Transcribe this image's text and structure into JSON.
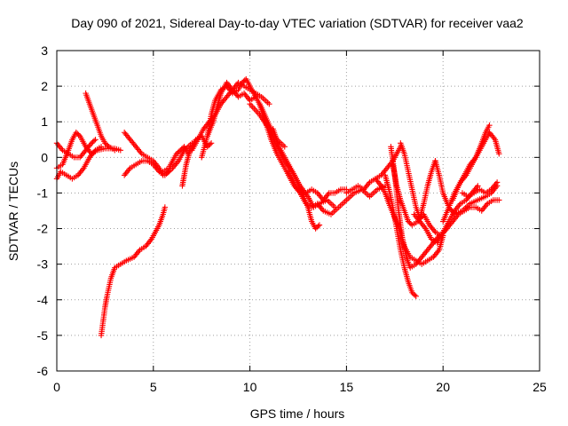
{
  "chart_data": {
    "type": "scatter",
    "title": "Day 090 of 2021, Sidereal Day-to-day VTEC variation (SDTVAR) for receiver vaa2",
    "xlabel": "GPS time / hours",
    "ylabel": "SDTVAR / TECUs",
    "xlim": [
      0,
      25
    ],
    "ylim": [
      -6,
      3
    ],
    "xticks": [
      0,
      5,
      10,
      15,
      20,
      25
    ],
    "yticks": [
      -6,
      -5,
      -4,
      -3,
      -2,
      -1,
      0,
      1,
      2,
      3
    ],
    "grid": true,
    "legend": "none",
    "marker": "plus",
    "color": "#ff0000",
    "series": [
      {
        "x": [
          0.0,
          0.3,
          0.6,
          0.8,
          1.0,
          1.2,
          1.5,
          1.8,
          2.1,
          2.5,
          3.0,
          3.3
        ],
        "y": [
          -0.3,
          -0.2,
          0.2,
          0.5,
          0.7,
          0.6,
          0.3,
          0.1,
          0.2,
          0.25,
          0.25,
          0.2
        ]
      },
      {
        "x": [
          0.0,
          0.2,
          0.5,
          0.8,
          1.1,
          1.4,
          1.7,
          2.0,
          2.3
        ],
        "y": [
          -0.6,
          -0.4,
          -0.5,
          -0.6,
          -0.5,
          -0.3,
          0.0,
          0.2,
          0.3
        ]
      },
      {
        "x": [
          0.0,
          0.3,
          0.6,
          0.9,
          1.2,
          1.5,
          1.8,
          2.0
        ],
        "y": [
          0.4,
          0.2,
          0.1,
          0.0,
          0.0,
          0.2,
          0.4,
          0.5
        ]
      },
      {
        "x": [
          1.5,
          1.7,
          1.9,
          2.1,
          2.3,
          2.5,
          2.7,
          3.0
        ],
        "y": [
          1.8,
          1.5,
          1.2,
          0.9,
          0.6,
          0.4,
          0.3,
          0.2
        ]
      },
      {
        "x": [
          2.3,
          2.4,
          2.5,
          2.6,
          2.8,
          3.0,
          3.3,
          3.6,
          4.0,
          4.3,
          4.6,
          4.9,
          5.1,
          5.3,
          5.5,
          5.6
        ],
        "y": [
          -5.0,
          -4.6,
          -4.2,
          -3.9,
          -3.4,
          -3.1,
          -3.0,
          -2.9,
          -2.8,
          -2.6,
          -2.5,
          -2.3,
          -2.1,
          -1.9,
          -1.6,
          -1.4
        ]
      },
      {
        "x": [
          3.5,
          3.8,
          4.1,
          4.4,
          4.7,
          5.0,
          5.3,
          5.5,
          5.8
        ],
        "y": [
          0.7,
          0.5,
          0.3,
          0.1,
          0.0,
          -0.1,
          -0.3,
          -0.5,
          -0.4
        ]
      },
      {
        "x": [
          3.5,
          3.8,
          4.1,
          4.4,
          4.7,
          5.0,
          5.3,
          5.6,
          6.0,
          6.3,
          6.6,
          7.0
        ],
        "y": [
          -0.5,
          -0.3,
          -0.2,
          -0.1,
          -0.1,
          -0.2,
          -0.4,
          -0.5,
          -0.3,
          -0.1,
          0.2,
          0.4
        ]
      },
      {
        "x": [
          5.5,
          5.8,
          6.0,
          6.2,
          6.4,
          6.6,
          6.8,
          7.0,
          7.2,
          7.5,
          7.8,
          8.0
        ],
        "y": [
          -0.4,
          -0.3,
          -0.1,
          0.1,
          0.2,
          0.3,
          0.1,
          0.3,
          0.5,
          0.6,
          0.3,
          0.4
        ]
      },
      {
        "x": [
          6.5,
          6.6,
          6.7,
          6.8,
          6.9
        ],
        "y": [
          -0.8,
          -0.5,
          -0.2,
          0.0,
          0.2
        ]
      },
      {
        "x": [
          7.0,
          7.3,
          7.6,
          7.9,
          8.2,
          8.5,
          8.8,
          9.1,
          9.4,
          9.7,
          10.0,
          10.3,
          10.6,
          11.0
        ],
        "y": [
          0.2,
          0.5,
          0.8,
          1.0,
          1.2,
          1.5,
          1.7,
          1.9,
          2.1,
          2.0,
          1.9,
          1.8,
          1.7,
          1.5
        ]
      },
      {
        "x": [
          7.5,
          7.8,
          8.1,
          8.3,
          8.5,
          8.8,
          9.1,
          9.4,
          9.7,
          10.0,
          10.3
        ],
        "y": [
          0.0,
          0.6,
          1.0,
          1.4,
          1.8,
          2.1,
          1.9,
          1.7,
          1.8,
          1.6,
          1.7
        ]
      },
      {
        "x": [
          7.8,
          8.0,
          8.2,
          8.5,
          8.8,
          9.1,
          9.4,
          9.6,
          9.8,
          10.2,
          10.6,
          11.0,
          11.4,
          11.8
        ],
        "y": [
          0.6,
          1.2,
          1.6,
          1.9,
          2.0,
          1.8,
          1.9,
          2.1,
          2.2,
          1.8,
          1.4,
          0.9,
          0.5,
          0.3
        ]
      },
      {
        "x": [
          10.5,
          10.8,
          11.1,
          11.4,
          11.7,
          12.0,
          12.3,
          12.6,
          12.9,
          13.2,
          13.5,
          13.8,
          14.1,
          14.4,
          14.7,
          15.0
        ],
        "y": [
          1.5,
          1.0,
          0.5,
          0.1,
          -0.2,
          -0.5,
          -0.8,
          -1.0,
          -1.0,
          -0.9,
          -1.0,
          -1.2,
          -1.0,
          -1.0,
          -0.9,
          -0.9
        ]
      },
      {
        "x": [
          10.0,
          10.5,
          11.0,
          11.4,
          11.8,
          12.2,
          12.6,
          13.0,
          13.3,
          13.6,
          14.0,
          14.4
        ],
        "y": [
          1.5,
          1.2,
          0.8,
          0.3,
          -0.1,
          -0.4,
          -0.8,
          -1.1,
          -1.4,
          -1.3,
          -1.2,
          -1.4
        ]
      },
      {
        "x": [
          11.2,
          11.5,
          11.8,
          12.1,
          12.4,
          12.7,
          13.0,
          13.2,
          13.4,
          13.6
        ],
        "y": [
          0.8,
          0.3,
          0.0,
          -0.3,
          -0.6,
          -1.0,
          -1.4,
          -1.8,
          -2.0,
          -1.9
        ]
      },
      {
        "x": [
          12.0,
          12.3,
          12.6,
          12.9,
          13.2,
          13.5,
          13.8,
          14.2,
          14.6,
          15.0,
          15.4,
          15.8,
          16.2,
          16.6,
          17.0
        ],
        "y": [
          -0.4,
          -0.7,
          -1.0,
          -1.3,
          -1.4,
          -1.3,
          -1.5,
          -1.6,
          -1.4,
          -1.2,
          -1.0,
          -0.9,
          -1.1,
          -0.9,
          -0.8
        ]
      },
      {
        "x": [
          15.0,
          15.3,
          15.6,
          15.9,
          16.2,
          16.5,
          16.8,
          17.1,
          17.4,
          17.6,
          17.8
        ],
        "y": [
          -1.0,
          -0.9,
          -0.8,
          -0.9,
          -0.7,
          -0.6,
          -0.5,
          -0.3,
          -0.1,
          0.1,
          0.3
        ]
      },
      {
        "x": [
          16.5,
          16.8,
          17.0,
          17.2,
          17.5,
          17.8,
          18.0,
          18.3,
          18.6,
          18.9,
          19.2,
          19.5,
          19.8,
          20.0
        ],
        "y": [
          -0.6,
          -0.8,
          -1.0,
          -1.3,
          -1.7,
          -2.1,
          -2.5,
          -2.8,
          -2.9,
          -3.0,
          -2.9,
          -2.8,
          -2.6,
          -2.2
        ]
      },
      {
        "x": [
          17.0,
          17.2,
          17.4,
          17.6,
          17.8,
          18.0,
          18.2,
          18.4,
          18.6
        ],
        "y": [
          -0.5,
          -0.9,
          -1.4,
          -2.0,
          -2.6,
          -3.1,
          -3.5,
          -3.8,
          -3.9
        ]
      },
      {
        "x": [
          17.3,
          17.5,
          17.7,
          17.9,
          18.1,
          18.3,
          18.6,
          18.9,
          19.2,
          19.5,
          19.8
        ],
        "y": [
          0.3,
          -0.5,
          -1.5,
          -2.3,
          -2.8,
          -3.1,
          -3.0,
          -2.8,
          -2.6,
          -2.4,
          -2.2
        ]
      },
      {
        "x": [
          17.4,
          17.6,
          17.8,
          18.0,
          18.2,
          18.4,
          18.7,
          19.0,
          19.3,
          19.6,
          19.9,
          20.2
        ],
        "y": [
          -0.2,
          -0.8,
          -1.2,
          -1.5,
          -1.8,
          -1.9,
          -1.8,
          -1.6,
          -1.9,
          -2.1,
          -2.2,
          -2.0
        ]
      },
      {
        "x": [
          17.8,
          18.0,
          18.2,
          18.4,
          18.6,
          18.8,
          19.0,
          19.2,
          19.4,
          19.6
        ],
        "y": [
          0.4,
          0.1,
          -0.4,
          -0.9,
          -1.4,
          -1.7,
          -1.3,
          -0.8,
          -0.4,
          -0.1
        ]
      },
      {
        "x": [
          18.5,
          18.8,
          19.1,
          19.4,
          19.7,
          20.0,
          20.3,
          20.6,
          20.9,
          21.2,
          21.5,
          21.8
        ],
        "y": [
          -1.6,
          -1.8,
          -2.0,
          -2.3,
          -2.4,
          -2.1,
          -1.8,
          -1.5,
          -1.3,
          -1.2,
          -1.0,
          -0.8
        ]
      },
      {
        "x": [
          19.6,
          19.8,
          20.0,
          20.3,
          20.6,
          21.0,
          21.4,
          21.8,
          22.2,
          22.5,
          22.8
        ],
        "y": [
          -0.1,
          -0.5,
          -1.0,
          -1.4,
          -1.6,
          -1.5,
          -1.3,
          -1.2,
          -1.1,
          -1.0,
          -0.8
        ]
      },
      {
        "x": [
          20.0,
          20.3,
          20.6,
          20.9,
          21.2,
          21.5,
          21.8,
          22.1,
          22.4,
          22.7,
          22.9
        ],
        "y": [
          -1.8,
          -1.4,
          -1.0,
          -0.7,
          -0.5,
          -0.2,
          0.1,
          0.4,
          0.7,
          0.5,
          0.1
        ]
      },
      {
        "x": [
          20.5,
          20.8,
          21.1,
          21.4,
          21.7,
          22.0,
          22.2,
          22.4
        ],
        "y": [
          -1.2,
          -0.8,
          -0.5,
          -0.2,
          0.0,
          0.4,
          0.7,
          0.9
        ]
      },
      {
        "x": [
          20.2,
          20.5,
          20.8,
          21.1,
          21.4,
          21.7,
          22.0,
          22.3,
          22.6,
          22.9
        ],
        "y": [
          -2.0,
          -1.8,
          -1.6,
          -1.5,
          -1.4,
          -1.4,
          -1.5,
          -1.3,
          -1.2,
          -1.2
        ]
      },
      {
        "x": [
          21.0,
          21.3,
          21.6,
          21.9,
          22.2,
          22.5,
          22.8
        ],
        "y": [
          -1.0,
          -1.1,
          -1.0,
          -0.9,
          -1.0,
          -0.9,
          -0.7
        ]
      }
    ]
  }
}
